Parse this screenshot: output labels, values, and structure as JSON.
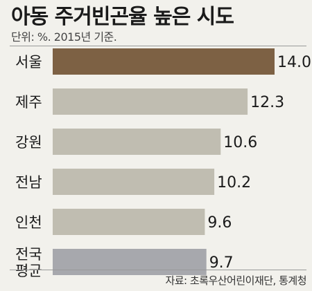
{
  "title": "아동 주거빈곤율 높은 시도",
  "subtitle": "단위: %. 2015년 기준.",
  "source": "자료: 초록우산어린이재단, 통계청",
  "colors": {
    "highlight": "#7d6144",
    "normal": "#c0bdb1",
    "average": "#a7a8ad",
    "background": "#f2f1ec"
  },
  "chart_data": {
    "type": "bar",
    "orientation": "horizontal",
    "title": "아동 주거빈곤율 높은 시도",
    "subtitle": "단위: %. 2015년 기준.",
    "categories": [
      "서울",
      "제주",
      "강원",
      "전남",
      "인천",
      "전국 평균"
    ],
    "values": [
      14.0,
      12.3,
      10.6,
      10.2,
      9.6,
      9.7
    ],
    "value_labels": [
      "14.0",
      "12.3",
      "10.6",
      "10.2",
      "9.6",
      "9.7"
    ],
    "highlight": "서울",
    "average": "전국 평균",
    "xlim": [
      0,
      14.0
    ],
    "grid": false
  }
}
